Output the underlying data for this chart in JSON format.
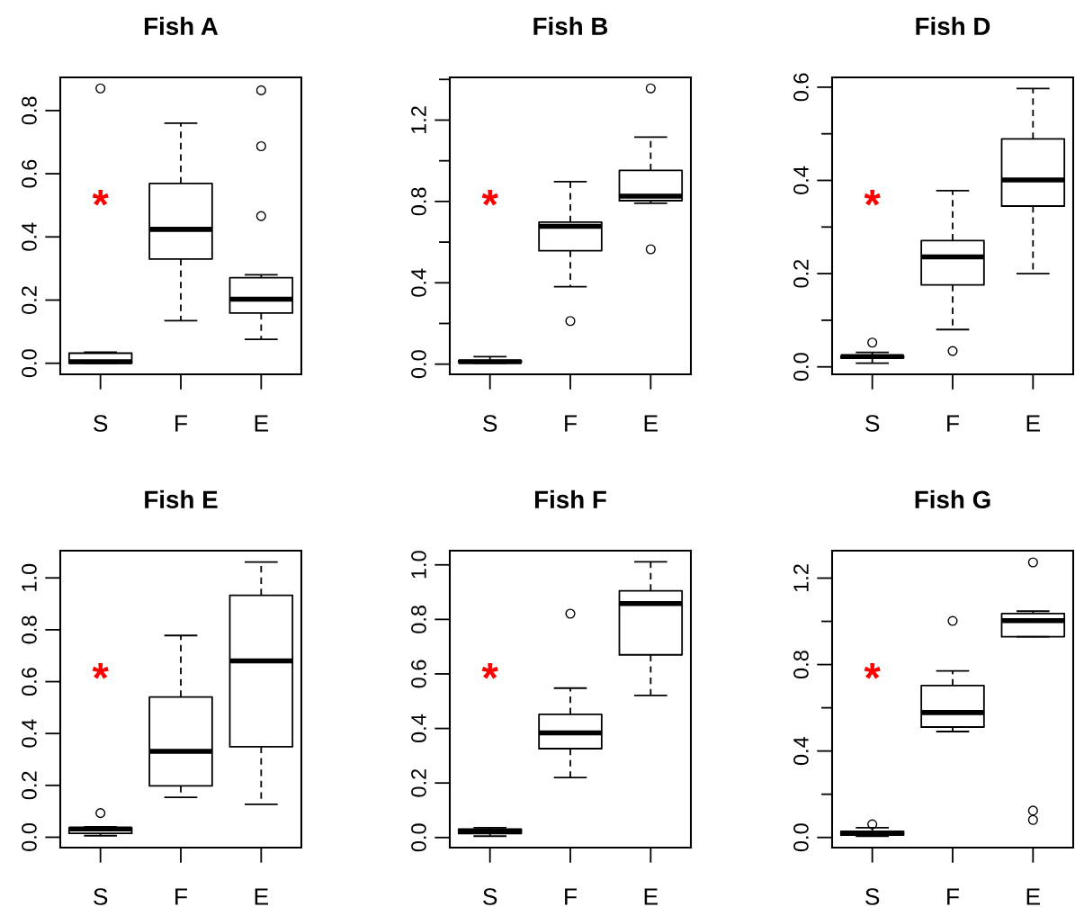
{
  "chart_data": [
    {
      "type": "box",
      "title": "Fish A",
      "categories": [
        "S",
        "F",
        "E"
      ],
      "ylim": [
        -0.035,
        0.905
      ],
      "yticks": [
        {
          "value": 0,
          "label": "0.0"
        },
        0.2,
        0.4,
        0.6,
        0.8
      ],
      "grid": false,
      "annotations": [
        "*"
      ],
      "boxes": [
        {
          "low": 0.0,
          "q1": 0.0,
          "median": 0.005,
          "q3": 0.032,
          "high": 0.035,
          "outliers": [
            0.87
          ]
        },
        {
          "low": 0.135,
          "q1": 0.33,
          "median": 0.424,
          "q3": 0.569,
          "high": 0.76
        },
        {
          "low": 0.076,
          "q1": 0.159,
          "median": 0.203,
          "q3": 0.271,
          "high": 0.28,
          "outliers": [
            0.466,
            0.687,
            0.864
          ]
        }
      ]
    },
    {
      "type": "box",
      "title": "Fish B",
      "categories": [
        "S",
        "F",
        "E"
      ],
      "ylim": [
        -0.05,
        1.41
      ],
      "yticks": [
        {
          "value": 0,
          "label": "0.0"
        },
        {
          "value": 0.2,
          "label": null
        },
        0.4,
        {
          "value": 0.6,
          "label": null
        },
        0.8,
        {
          "value": 1.0,
          "label": null
        },
        1.2,
        {
          "value": 1.4,
          "label": null
        }
      ],
      "grid": false,
      "annotations": [
        "*"
      ],
      "boxes": [
        {
          "low": 0.005,
          "q1": 0.008,
          "median": 0.012,
          "q3": 0.018,
          "high": 0.037
        },
        {
          "low": 0.381,
          "q1": 0.558,
          "median": 0.678,
          "q3": 0.698,
          "high": 0.897,
          "outliers": [
            0.212
          ]
        },
        {
          "low": 0.791,
          "q1": 0.804,
          "median": 0.826,
          "q3": 0.953,
          "high": 1.116,
          "outliers": [
            0.565,
            1.356
          ]
        }
      ]
    },
    {
      "type": "box",
      "title": "Fish D",
      "categories": [
        "S",
        "F",
        "E"
      ],
      "ylim": [
        -0.016,
        0.621
      ],
      "yticks": [
        {
          "value": 0,
          "label": "0.0"
        },
        {
          "value": 0.1,
          "label": null
        },
        0.2,
        {
          "value": 0.3,
          "label": null
        },
        0.4,
        {
          "value": 0.5,
          "label": null
        },
        0.6
      ],
      "grid": false,
      "annotations": [
        "*"
      ],
      "boxes": [
        {
          "low": 0.008,
          "q1": 0.019,
          "median": 0.022,
          "q3": 0.024,
          "high": 0.031,
          "outliers": [
            0.052
          ]
        },
        {
          "low": 0.08,
          "q1": 0.176,
          "median": 0.236,
          "q3": 0.271,
          "high": 0.378,
          "outliers": [
            0.034
          ]
        },
        {
          "low": 0.2,
          "q1": 0.345,
          "median": 0.401,
          "q3": 0.489,
          "high": 0.597
        }
      ]
    },
    {
      "type": "box",
      "title": "Fish E",
      "categories": [
        "S",
        "F",
        "E"
      ],
      "ylim": [
        -0.04,
        1.105
      ],
      "yticks": [
        {
          "value": 0,
          "label": "0.0"
        },
        0.2,
        0.4,
        0.6,
        0.8,
        {
          "value": 1,
          "label": "1.0"
        }
      ],
      "grid": false,
      "annotations": [
        "*"
      ],
      "boxes": [
        {
          "low": 0.006,
          "q1": 0.015,
          "median": 0.032,
          "q3": 0.037,
          "high": 0.04,
          "outliers": [
            0.093
          ]
        },
        {
          "low": 0.154,
          "q1": 0.198,
          "median": 0.331,
          "q3": 0.541,
          "high": 0.778
        },
        {
          "low": 0.127,
          "q1": 0.349,
          "median": 0.68,
          "q3": 0.933,
          "high": 1.061
        }
      ]
    },
    {
      "type": "box",
      "title": "Fish F",
      "categories": [
        "S",
        "F",
        "E"
      ],
      "ylim": [
        -0.037,
        1.052
      ],
      "yticks": [
        {
          "value": 0,
          "label": "0.0"
        },
        0.2,
        0.4,
        0.6,
        0.8,
        {
          "value": 1,
          "label": "1.0"
        }
      ],
      "grid": false,
      "annotations": [
        "*"
      ],
      "boxes": [
        {
          "low": 0.005,
          "q1": 0.015,
          "median": 0.023,
          "q3": 0.031,
          "high": 0.036
        },
        {
          "low": 0.22,
          "q1": 0.326,
          "median": 0.384,
          "q3": 0.452,
          "high": 0.548,
          "outliers": [
            0.821
          ]
        },
        {
          "low": 0.521,
          "q1": 0.67,
          "median": 0.858,
          "q3": 0.905,
          "high": 1.011
        }
      ]
    },
    {
      "type": "box",
      "title": "Fish G",
      "categories": [
        "S",
        "F",
        "E"
      ],
      "ylim": [
        -0.047,
        1.327
      ],
      "yticks": [
        {
          "value": 0,
          "label": "0.0"
        },
        {
          "value": 0.2,
          "label": null
        },
        0.4,
        {
          "value": 0.6,
          "label": null
        },
        0.8,
        {
          "value": 1.0,
          "label": null
        },
        1.2
      ],
      "grid": false,
      "annotations": [
        "*"
      ],
      "boxes": [
        {
          "low": 0.006,
          "q1": 0.011,
          "median": 0.019,
          "q3": 0.028,
          "high": 0.045,
          "outliers": [
            0.061
          ]
        },
        {
          "low": 0.49,
          "q1": 0.511,
          "median": 0.578,
          "q3": 0.703,
          "high": 0.771,
          "outliers": [
            1.002
          ]
        },
        {
          "low": 0.929,
          "q1": 0.929,
          "median": 1.003,
          "q3": 1.036,
          "high": 1.047,
          "outliers": [
            0.081,
            0.124,
            1.273
          ]
        }
      ]
    }
  ]
}
